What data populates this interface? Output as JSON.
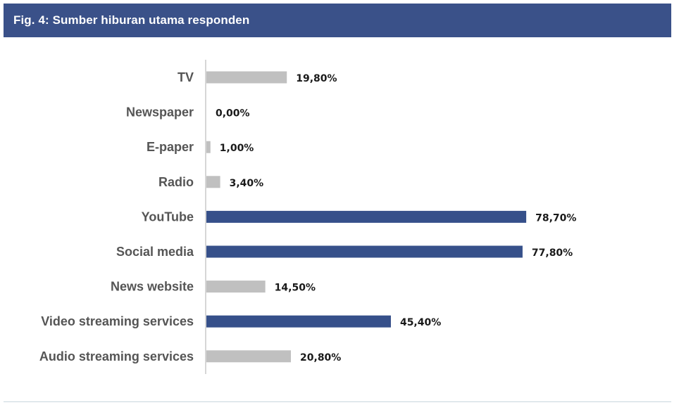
{
  "header": {
    "title": "Fig. 4: Sumber hiburan utama responden"
  },
  "colors": {
    "title_bar": "#3a5189",
    "highlight_bar": "#36508a",
    "default_bar": "#c0c0c0",
    "axis": "#c8c8c8"
  },
  "chart_data": {
    "type": "bar",
    "orientation": "horizontal",
    "title": "Fig. 4: Sumber hiburan utama responden",
    "xlabel": "",
    "ylabel": "",
    "xlim": [
      0,
      100
    ],
    "grid": false,
    "legend": "none",
    "categories": [
      "TV",
      "Newspaper",
      "E-paper",
      "Radio",
      "YouTube",
      "Social media",
      "News website",
      "Video streaming services",
      "Audio streaming services"
    ],
    "values": [
      19.8,
      0.0,
      1.0,
      3.4,
      78.7,
      77.8,
      14.5,
      45.4,
      20.8
    ],
    "value_labels": [
      "19,80%",
      "0,00%",
      "1,00%",
      "3,40%",
      "78,70%",
      "77,80%",
      "14,50%",
      "45,40%",
      "20,80%"
    ],
    "highlighted": [
      false,
      false,
      false,
      false,
      true,
      true,
      false,
      true,
      false
    ]
  }
}
